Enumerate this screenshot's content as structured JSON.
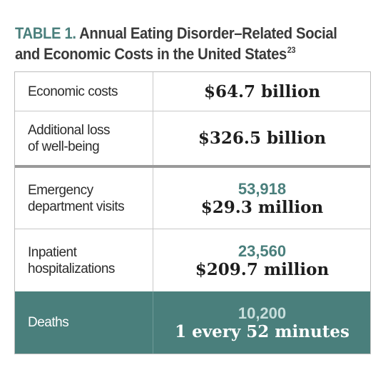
{
  "title": {
    "lead": "TABLE 1.",
    "text_line1": "Annual Eating Disorder–Related Social",
    "text_line2": "and Economic Costs in the United States",
    "superscript": "23"
  },
  "rows": [
    {
      "label_line1": "Economic costs",
      "label_line2": "",
      "count": "",
      "amount": "$64.7 billion"
    },
    {
      "label_line1": "Additional loss",
      "label_line2": "of well-being",
      "count": "",
      "amount": "$326.5 billion"
    },
    {
      "label_line1": "Emergency",
      "label_line2": "department visits",
      "count": "53,918",
      "amount": "$29.3 million"
    },
    {
      "label_line1": "Inpatient",
      "label_line2": "hospitalizations",
      "count": "23,560",
      "amount": "$209.7 million"
    },
    {
      "label_line1": "Deaths",
      "label_line2": "",
      "count": "10,200",
      "amount": "1 every 52 minutes"
    }
  ],
  "colors": {
    "accent": "#4a7f7c",
    "text": "#2b2b2b"
  }
}
